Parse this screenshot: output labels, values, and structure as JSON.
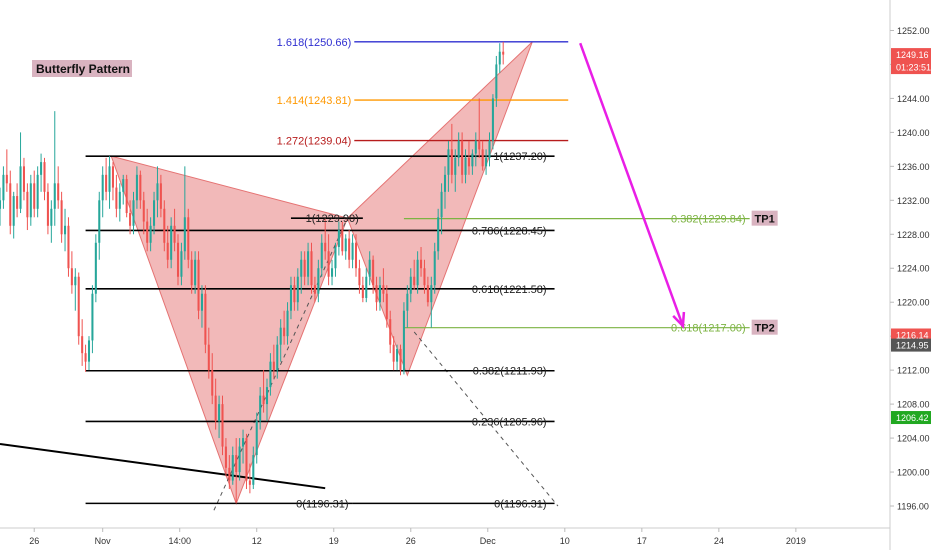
{
  "chart_data": {
    "type": "candlestick",
    "title": "Butterfly Pattern",
    "colors": {
      "up": "#26a69a",
      "down": "#ef5350",
      "pattern_fill": "#e57373",
      "projection_arrow": "#e91ee6",
      "ext_1618": "#2f2fd0",
      "ext_1414": "#ff9800",
      "ext_1272": "#b71c1c",
      "retracement": "#000000",
      "target": "#7cb342",
      "tag_bg": "#d9b3c0"
    },
    "y_axis": {
      "ylim": [
        1194,
        1255
      ],
      "ticks": [
        1196,
        1200,
        1204,
        1208,
        1212,
        1216,
        1220,
        1224,
        1228,
        1232,
        1236,
        1240,
        1244,
        1248,
        1252
      ],
      "tick_labels": [
        "1196.00",
        "1200.00",
        "1204.00",
        "1208.00",
        "1212.00",
        "1216.00",
        "1220.00",
        "1224.00",
        "1228.00",
        "1232.00",
        "1236.00",
        "1240.00",
        "1244.00",
        "1248.00",
        "1252.00"
      ]
    },
    "x_axis": {
      "xlim": [
        -2,
        50
      ],
      "ticks": [
        {
          "x": 0,
          "label": "26"
        },
        {
          "x": 4,
          "label": "Nov"
        },
        {
          "x": 8.5,
          "label": "14:00"
        },
        {
          "x": 13,
          "label": "12"
        },
        {
          "x": 17.5,
          "label": "19"
        },
        {
          "x": 22,
          "label": "26"
        },
        {
          "x": 26.5,
          "label": "Dec"
        },
        {
          "x": 31,
          "label": "10"
        },
        {
          "x": 35.5,
          "label": "17"
        },
        {
          "x": 40,
          "label": "24"
        },
        {
          "x": 44.5,
          "label": "2019"
        }
      ]
    },
    "price_badges": [
      {
        "label": "1249.16",
        "sub": "01:23:51",
        "value": 1249.16,
        "color": "#ef5350"
      },
      {
        "label": "1216.14",
        "value": 1216.14,
        "color": "#ef5350"
      },
      {
        "label": "1214.95",
        "value": 1214.95,
        "color": "#555555"
      },
      {
        "label": "1206.42",
        "value": 1206.42,
        "color": "#21a821"
      }
    ],
    "pattern": {
      "points": [
        {
          "x": 4.5,
          "y": 1237.2
        },
        {
          "x": 11.8,
          "y": 1196.3
        },
        {
          "x": 18.3,
          "y": 1229.9
        },
        {
          "x": 21.8,
          "y": 1211.4
        },
        {
          "x": 29.1,
          "y": 1250.66
        }
      ]
    },
    "fib_levels": [
      {
        "label": "1.618(1250.66)",
        "value": 1250.66,
        "x0": 18.7,
        "x1": 31.2,
        "role": "ext_1618",
        "label_side": "left"
      },
      {
        "label": "1.414(1243.81)",
        "value": 1243.81,
        "x0": 18.7,
        "x1": 31.2,
        "role": "ext_1414",
        "label_side": "left"
      },
      {
        "label": "1.272(1239.04)",
        "value": 1239.04,
        "x0": 18.7,
        "x1": 31.2,
        "role": "ext_1272",
        "label_side": "left"
      },
      {
        "label": "1(1237.20)",
        "value": 1237.2,
        "x0": 3.0,
        "x1": 30.4,
        "role": "retracement",
        "label_side": "right"
      },
      {
        "label": "1(1229.90)",
        "value": 1229.9,
        "x0": 15.0,
        "x1": 19.2,
        "role": "retracement",
        "label_side": "right"
      },
      {
        "label": "0.786(1228.45)",
        "value": 1228.45,
        "x0": 3.0,
        "x1": 30.4,
        "role": "retracement",
        "label_side": "right"
      },
      {
        "label": "0.618(1221.58)",
        "value": 1221.58,
        "x0": 3.0,
        "x1": 30.4,
        "role": "retracement",
        "label_side": "right"
      },
      {
        "label": "0.382(1211.93)",
        "value": 1211.93,
        "x0": 3.0,
        "x1": 30.4,
        "role": "retracement",
        "label_side": "right"
      },
      {
        "label": "0.236(1205.96)",
        "value": 1205.96,
        "x0": 3.0,
        "x1": 30.4,
        "role": "retracement",
        "label_side": "right"
      },
      {
        "label": "0(1196.31)",
        "value": 1196.31,
        "x0": 3.0,
        "x1": 18.6,
        "role": "retracement",
        "label_side": "right"
      },
      {
        "label": "0(1196.31)",
        "value": 1196.31,
        "x0": 18.6,
        "x1": 30.4,
        "role": "retracement",
        "label_side": "right"
      }
    ],
    "targets": [
      {
        "label": "0.382(1229.84)",
        "tag": "TP1",
        "value": 1229.84,
        "x0": 21.6,
        "x1": 41.8
      },
      {
        "label": "0.618(1217.00)",
        "tag": "TP2",
        "value": 1217.0,
        "x0": 21.6,
        "x1": 41.8
      }
    ],
    "trendline": {
      "x0": -2,
      "y0": 1203.3,
      "x1": 17,
      "y1": 1198.1
    },
    "dashed_lines": [
      {
        "x0": 10.5,
        "y0": 1195.5,
        "x1": 18.3,
        "y1": 1229.9
      },
      {
        "x0": 22.2,
        "y0": 1216.5,
        "x1": 30.6,
        "y1": 1196.0
      }
    ],
    "projection_arrow": {
      "x0": 31.9,
      "y0": 1250.5,
      "x1": 37.9,
      "y1": 1217.2
    },
    "candles": [
      [
        -2.0,
        1231.0,
        1233.5,
        1229.0,
        1232.0
      ],
      [
        -1.8,
        1232.0,
        1236.0,
        1231.0,
        1235.0
      ],
      [
        -1.6,
        1235.0,
        1238.0,
        1233.0,
        1234.0
      ],
      [
        -1.4,
        1234.0,
        1235.5,
        1228.0,
        1229.0
      ],
      [
        -1.2,
        1229.0,
        1233.0,
        1227.5,
        1232.5
      ],
      [
        -1.0,
        1232.5,
        1234.0,
        1230.0,
        1231.0
      ],
      [
        -0.8,
        1231.0,
        1240.0,
        1230.5,
        1236.0
      ],
      [
        -0.6,
        1236.0,
        1237.0,
        1232.0,
        1233.0
      ],
      [
        -0.4,
        1233.0,
        1234.0,
        1228.5,
        1230.0
      ],
      [
        -0.2,
        1230.0,
        1235.0,
        1229.0,
        1234.0
      ],
      [
        0.0,
        1234.0,
        1235.5,
        1230.0,
        1231.0
      ],
      [
        0.2,
        1231.0,
        1236.0,
        1230.0,
        1235.0
      ],
      [
        0.4,
        1235.0,
        1237.5,
        1233.0,
        1236.5
      ],
      [
        0.6,
        1236.5,
        1237.0,
        1232.0,
        1233.0
      ],
      [
        0.8,
        1233.0,
        1234.0,
        1228.0,
        1229.0
      ],
      [
        1.0,
        1229.0,
        1232.0,
        1227.0,
        1231.0
      ],
      [
        1.2,
        1231.0,
        1242.5,
        1229.0,
        1234.0
      ],
      [
        1.4,
        1234.0,
        1236.0,
        1231.0,
        1232.0
      ],
      [
        1.6,
        1232.0,
        1233.0,
        1227.0,
        1228.0
      ],
      [
        1.8,
        1228.0,
        1231.0,
        1226.0,
        1229.0
      ],
      [
        2.0,
        1229.0,
        1230.0,
        1223.0,
        1224.0
      ],
      [
        2.2,
        1224.0,
        1226.0,
        1221.0,
        1222.0
      ],
      [
        2.4,
        1222.0,
        1224.0,
        1219.0,
        1223.0
      ],
      [
        2.6,
        1223.0,
        1223.5,
        1215.0,
        1216.0
      ],
      [
        2.8,
        1216.0,
        1218.0,
        1212.5,
        1214.0
      ],
      [
        3.0,
        1214.0,
        1215.0,
        1211.8,
        1213.0
      ],
      [
        3.2,
        1213.0,
        1216.0,
        1212.0,
        1215.5
      ],
      [
        3.4,
        1215.5,
        1222.0,
        1214.0,
        1221.0
      ],
      [
        3.6,
        1221.0,
        1228.0,
        1220.0,
        1227.0
      ],
      [
        3.8,
        1227.0,
        1233.0,
        1225.0,
        1232.0
      ],
      [
        4.0,
        1232.0,
        1236.0,
        1230.0,
        1235.0
      ],
      [
        4.2,
        1235.0,
        1237.0,
        1232.0,
        1233.0
      ],
      [
        4.4,
        1233.0,
        1237.2,
        1231.0,
        1236.0
      ],
      [
        4.6,
        1236.0,
        1236.5,
        1232.0,
        1233.5
      ],
      [
        4.8,
        1233.5,
        1235.0,
        1230.0,
        1231.0
      ],
      [
        5.0,
        1231.0,
        1234.0,
        1229.5,
        1233.0
      ],
      [
        5.2,
        1233.0,
        1235.0,
        1231.5,
        1234.5
      ],
      [
        5.4,
        1234.5,
        1235.0,
        1230.0,
        1230.5
      ],
      [
        5.6,
        1230.5,
        1232.0,
        1228.0,
        1229.0
      ],
      [
        5.8,
        1229.0,
        1233.0,
        1228.0,
        1232.0
      ],
      [
        6.0,
        1232.0,
        1236.0,
        1231.0,
        1235.0
      ],
      [
        6.2,
        1235.0,
        1235.5,
        1231.0,
        1232.0
      ],
      [
        6.4,
        1232.0,
        1233.0,
        1228.0,
        1229.5
      ],
      [
        6.6,
        1229.5,
        1231.0,
        1226.0,
        1227.0
      ],
      [
        6.8,
        1227.0,
        1230.0,
        1226.0,
        1229.0
      ],
      [
        7.0,
        1229.0,
        1233.0,
        1228.0,
        1232.0
      ],
      [
        7.2,
        1232.0,
        1236.0,
        1230.0,
        1234.0
      ],
      [
        7.4,
        1234.0,
        1235.0,
        1230.0,
        1231.0
      ],
      [
        7.6,
        1231.0,
        1232.0,
        1226.0,
        1227.0
      ],
      [
        7.8,
        1227.0,
        1229.0,
        1224.0,
        1225.0
      ],
      [
        8.0,
        1225.0,
        1230.0,
        1224.0,
        1229.0
      ],
      [
        8.2,
        1229.0,
        1231.0,
        1226.0,
        1227.0
      ],
      [
        8.4,
        1227.0,
        1228.0,
        1222.0,
        1223.0
      ],
      [
        8.6,
        1223.0,
        1227.0,
        1222.0,
        1226.0
      ],
      [
        8.8,
        1226.0,
        1236.0,
        1225.0,
        1230.0
      ],
      [
        9.0,
        1230.0,
        1231.0,
        1224.0,
        1225.0
      ],
      [
        9.2,
        1225.0,
        1226.0,
        1221.0,
        1222.0
      ],
      [
        9.4,
        1222.0,
        1226.0,
        1221.0,
        1225.0
      ],
      [
        9.6,
        1225.0,
        1226.0,
        1218.0,
        1219.0
      ],
      [
        9.8,
        1219.0,
        1222.0,
        1217.0,
        1221.0
      ],
      [
        10.0,
        1221.0,
        1222.0,
        1214.0,
        1215.0
      ],
      [
        10.2,
        1215.0,
        1217.0,
        1211.0,
        1212.0
      ],
      [
        10.4,
        1212.0,
        1214.0,
        1208.0,
        1209.0
      ],
      [
        10.6,
        1209.0,
        1211.0,
        1205.0,
        1206.0
      ],
      [
        10.8,
        1206.0,
        1209.0,
        1204.0,
        1208.0
      ],
      [
        11.0,
        1208.0,
        1209.0,
        1202.0,
        1203.0
      ],
      [
        11.2,
        1203.0,
        1204.0,
        1199.5,
        1200.5
      ],
      [
        11.4,
        1200.5,
        1202.0,
        1198.0,
        1199.0
      ],
      [
        11.6,
        1199.0,
        1203.0,
        1198.5,
        1202.0
      ],
      [
        11.8,
        1202.0,
        1204.0,
        1196.3,
        1200.0
      ],
      [
        12.0,
        1200.0,
        1204.0,
        1199.0,
        1203.0
      ],
      [
        12.2,
        1203.0,
        1205.0,
        1201.0,
        1204.0
      ],
      [
        12.4,
        1204.0,
        1204.5,
        1198.0,
        1199.0
      ],
      [
        12.6,
        1199.0,
        1201.0,
        1197.5,
        1198.5
      ],
      [
        12.8,
        1198.5,
        1203.0,
        1198.0,
        1202.0
      ],
      [
        13.0,
        1202.0,
        1207.0,
        1201.0,
        1206.0
      ],
      [
        13.2,
        1206.0,
        1210.0,
        1205.0,
        1209.0
      ],
      [
        13.4,
        1209.0,
        1212.0,
        1207.0,
        1208.0
      ],
      [
        13.6,
        1208.0,
        1211.0,
        1206.0,
        1210.0
      ],
      [
        13.8,
        1210.0,
        1214.0,
        1209.0,
        1213.0
      ],
      [
        14.0,
        1213.0,
        1215.0,
        1211.0,
        1212.0
      ],
      [
        14.2,
        1212.0,
        1216.0,
        1211.0,
        1215.0
      ],
      [
        14.4,
        1215.0,
        1218.0,
        1213.0,
        1217.0
      ],
      [
        14.6,
        1217.0,
        1219.0,
        1215.0,
        1216.0
      ],
      [
        14.8,
        1216.0,
        1220.0,
        1215.0,
        1219.0
      ],
      [
        15.0,
        1219.0,
        1223.0,
        1218.0,
        1222.0
      ],
      [
        15.2,
        1222.0,
        1223.0,
        1219.0,
        1220.0
      ],
      [
        15.4,
        1220.0,
        1224.0,
        1219.0,
        1223.0
      ],
      [
        15.6,
        1223.0,
        1226.0,
        1221.0,
        1225.0
      ],
      [
        15.8,
        1225.0,
        1226.0,
        1222.0,
        1223.0
      ],
      [
        16.0,
        1223.0,
        1227.0,
        1222.0,
        1226.0
      ],
      [
        16.2,
        1226.0,
        1227.0,
        1221.0,
        1222.0
      ],
      [
        16.4,
        1222.0,
        1223.0,
        1220.0,
        1221.0
      ],
      [
        16.6,
        1221.0,
        1225.0,
        1220.0,
        1224.0
      ],
      [
        16.8,
        1224.0,
        1228.0,
        1223.0,
        1227.0
      ],
      [
        17.0,
        1227.0,
        1229.9,
        1225.0,
        1226.0
      ],
      [
        17.2,
        1226.0,
        1228.0,
        1222.0,
        1223.0
      ],
      [
        17.4,
        1223.0,
        1225.0,
        1222.0,
        1224.0
      ],
      [
        17.6,
        1224.0,
        1227.0,
        1223.0,
        1226.5
      ],
      [
        17.8,
        1226.5,
        1229.5,
        1225.5,
        1228.5
      ],
      [
        18.0,
        1228.5,
        1229.5,
        1225.5,
        1226.0
      ],
      [
        18.2,
        1226.0,
        1228.0,
        1225.0,
        1227.5
      ],
      [
        18.4,
        1227.5,
        1228.5,
        1224.0,
        1225.0
      ],
      [
        18.6,
        1225.0,
        1228.0,
        1224.0,
        1227.0
      ],
      [
        18.8,
        1227.0,
        1228.0,
        1223.0,
        1224.0
      ],
      [
        19.0,
        1224.0,
        1225.0,
        1221.0,
        1222.0
      ],
      [
        19.2,
        1222.0,
        1223.0,
        1220.0,
        1220.5
      ],
      [
        19.4,
        1220.5,
        1224.0,
        1220.0,
        1223.0
      ],
      [
        19.6,
        1223.0,
        1226.0,
        1222.0,
        1225.0
      ],
      [
        19.8,
        1225.0,
        1225.5,
        1221.0,
        1222.0
      ],
      [
        20.0,
        1222.0,
        1223.0,
        1219.0,
        1220.0
      ],
      [
        20.2,
        1220.0,
        1223.0,
        1219.0,
        1222.0
      ],
      [
        20.4,
        1222.0,
        1224.0,
        1220.0,
        1221.0
      ],
      [
        20.6,
        1221.0,
        1222.0,
        1217.0,
        1218.0
      ],
      [
        20.8,
        1218.0,
        1219.0,
        1214.0,
        1215.0
      ],
      [
        21.0,
        1215.0,
        1216.0,
        1212.0,
        1213.0
      ],
      [
        21.2,
        1213.0,
        1215.0,
        1212.0,
        1214.5
      ],
      [
        21.4,
        1214.5,
        1215.0,
        1211.4,
        1212.0
      ],
      [
        21.6,
        1212.0,
        1220.0,
        1211.5,
        1219.0
      ],
      [
        21.8,
        1219.0,
        1222.0,
        1217.0,
        1221.0
      ],
      [
        22.0,
        1221.0,
        1224.0,
        1220.0,
        1223.0
      ],
      [
        22.2,
        1223.0,
        1225.0,
        1221.5,
        1222.0
      ],
      [
        22.4,
        1222.0,
        1226.0,
        1221.0,
        1225.0
      ],
      [
        22.6,
        1225.0,
        1226.5,
        1223.0,
        1224.0
      ],
      [
        22.8,
        1224.0,
        1225.0,
        1221.0,
        1222.0
      ],
      [
        23.0,
        1222.0,
        1223.0,
        1219.5,
        1220.0
      ],
      [
        23.2,
        1220.0,
        1223.0,
        1217.0,
        1222.0
      ],
      [
        23.4,
        1222.0,
        1227.0,
        1221.0,
        1226.0
      ],
      [
        23.6,
        1226.0,
        1231.0,
        1225.0,
        1230.0
      ],
      [
        23.8,
        1230.0,
        1234.0,
        1228.0,
        1233.0
      ],
      [
        24.0,
        1233.0,
        1236.0,
        1231.0,
        1235.0
      ],
      [
        24.2,
        1235.0,
        1239.0,
        1233.0,
        1238.0
      ],
      [
        24.4,
        1238.0,
        1241.0,
        1234.0,
        1235.0
      ],
      [
        24.6,
        1235.0,
        1238.0,
        1233.0,
        1237.0
      ],
      [
        24.8,
        1237.0,
        1240.0,
        1236.0,
        1239.0
      ],
      [
        25.0,
        1239.0,
        1240.0,
        1234.0,
        1235.0
      ],
      [
        25.2,
        1235.0,
        1238.0,
        1234.0,
        1237.0
      ],
      [
        25.4,
        1237.0,
        1239.0,
        1235.0,
        1236.0
      ],
      [
        25.6,
        1236.0,
        1238.0,
        1235.0,
        1237.5
      ],
      [
        25.8,
        1237.5,
        1240.0,
        1236.0,
        1239.0
      ],
      [
        26.0,
        1239.0,
        1244.0,
        1237.0,
        1238.0
      ],
      [
        26.2,
        1238.0,
        1239.0,
        1235.5,
        1236.0
      ],
      [
        26.4,
        1236.0,
        1238.0,
        1235.0,
        1237.0
      ],
      [
        26.6,
        1237.0,
        1240.0,
        1236.0,
        1239.0
      ],
      [
        26.8,
        1239.0,
        1244.5,
        1238.0,
        1244.0
      ],
      [
        27.0,
        1244.0,
        1249.0,
        1243.0,
        1248.0
      ],
      [
        27.2,
        1248.0,
        1250.5,
        1247.0,
        1249.5
      ],
      [
        27.4,
        1249.5,
        1250.66,
        1248.0,
        1249.16
      ]
    ]
  }
}
